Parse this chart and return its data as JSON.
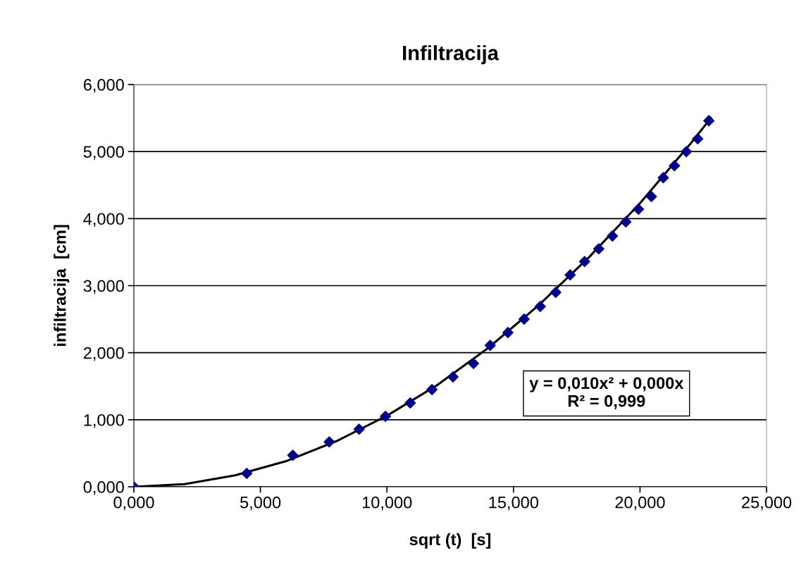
{
  "chart_data": {
    "type": "scatter",
    "title": "Infiltracija",
    "xlabel": "sqrt (t)  [s]",
    "ylabel": "infiltracija  [cm]",
    "series": [
      {
        "color": "#00008b",
        "marker": "diamond",
        "x": [
          0,
          4.46,
          6.28,
          7.72,
          8.9,
          9.94,
          10.92,
          11.78,
          12.61,
          13.42,
          14.08,
          14.78,
          15.42,
          16.06,
          16.67,
          17.24,
          17.81,
          18.37,
          18.91,
          19.44,
          19.94,
          20.45,
          20.92,
          21.36,
          21.83,
          22.28,
          22.72
        ],
        "values": [
          0,
          0.2,
          0.47,
          0.67,
          0.86,
          1.05,
          1.25,
          1.45,
          1.64,
          1.84,
          2.11,
          2.3,
          2.5,
          2.69,
          2.9,
          3.16,
          3.36,
          3.55,
          3.74,
          3.95,
          4.14,
          4.33,
          4.61,
          4.79,
          5.0,
          5.19,
          5.46
        ]
      },
      {
        "type": "line",
        "color": "#000000",
        "marker": "none",
        "line_style": "solid",
        "x": [
          0,
          2,
          4,
          6,
          8,
          10,
          12,
          14,
          16,
          18,
          20,
          22,
          22.8
        ],
        "values": [
          0,
          0.04,
          0.17,
          0.38,
          0.68,
          1.06,
          1.52,
          2.07,
          2.71,
          3.43,
          4.23,
          5.12,
          5.5
        ]
      }
    ],
    "xlim": [
      0,
      25
    ],
    "ylim": [
      0,
      6
    ],
    "xticks": [
      {
        "value": 0,
        "label": "0,000"
      },
      {
        "value": 5,
        "label": "5,000"
      },
      {
        "value": 10,
        "label": "10,000"
      },
      {
        "value": 15,
        "label": "15,000"
      },
      {
        "value": 20,
        "label": "20,000"
      },
      {
        "value": 25,
        "label": "25,000"
      }
    ],
    "yticks": [
      {
        "value": 0,
        "label": "0,000"
      },
      {
        "value": 1,
        "label": "1,000"
      },
      {
        "value": 2,
        "label": "2,000"
      },
      {
        "value": 3,
        "label": "3,000"
      },
      {
        "value": 4,
        "label": "4,000"
      },
      {
        "value": 5,
        "label": "5,000"
      },
      {
        "value": 6,
        "label": "6,000"
      }
    ],
    "grid": "y",
    "annotations": [
      "y = 0,010x² + 0,000x\nR² = 0,999"
    ]
  }
}
